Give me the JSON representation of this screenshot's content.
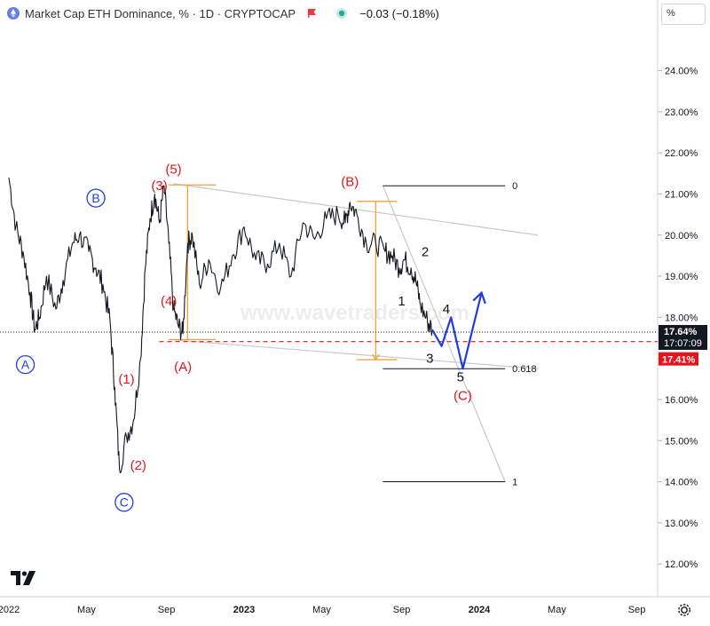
{
  "header": {
    "title": "Market Cap ETH Dominance, % · 1D · CRYPTOCAP",
    "change": "−0.03 (−0.18%)",
    "scale_label": "%"
  },
  "watermark": "www.wavetraders.com",
  "price_tags": {
    "current": "17.64%",
    "countdown": "17:07:09",
    "red": "17.41%"
  },
  "colors": {
    "price": "#131722",
    "red": "#e8121e",
    "blue": "#1e3de0",
    "orange": "#f0a040",
    "gray": "#c8c8c8",
    "accent": "#f23645"
  },
  "chart_data": {
    "type": "line",
    "title": "Market Cap ETH Dominance, % · 1D · CRYPTOCAP",
    "x_ticks": [
      "2022",
      "May",
      "Sep",
      "2023",
      "May",
      "Sep",
      "2024",
      "May",
      "Sep"
    ],
    "y_ticks": [
      "12.00%",
      "13.00%",
      "14.00%",
      "15.00%",
      "16.00%",
      "17.00%",
      "18.00%",
      "19.00%",
      "20.00%",
      "21.00%",
      "22.00%",
      "23.00%",
      "24.00%"
    ],
    "ylim": [
      11.25,
      25.2
    ],
    "series": [
      {
        "values": [
          [
            2022.0,
            21.4
          ],
          [
            2022.03,
            20.2
          ],
          [
            2022.06,
            19.6
          ],
          [
            2022.09,
            18.6
          ],
          [
            2022.11,
            17.7
          ],
          [
            2022.13,
            18.0
          ],
          [
            2022.16,
            19.0
          ],
          [
            2022.2,
            18.2
          ],
          [
            2022.23,
            18.9
          ],
          [
            2022.27,
            19.8
          ],
          [
            2022.3,
            20.0
          ],
          [
            2022.34,
            19.6
          ],
          [
            2022.37,
            19.2
          ],
          [
            2022.4,
            18.8
          ],
          [
            2022.43,
            17.9
          ],
          [
            2022.45,
            16.3
          ],
          [
            2022.47,
            14.3
          ],
          [
            2022.5,
            15.1
          ],
          [
            2022.53,
            15.5
          ],
          [
            2022.56,
            17.0
          ],
          [
            2022.58,
            19.2
          ],
          [
            2022.6,
            20.4
          ],
          [
            2022.62,
            21.0
          ],
          [
            2022.64,
            20.3
          ],
          [
            2022.66,
            21.2
          ],
          [
            2022.68,
            19.8
          ],
          [
            2022.7,
            18.2
          ],
          [
            2022.72,
            17.8
          ],
          [
            2022.74,
            17.6
          ],
          [
            2022.76,
            19.8
          ],
          [
            2022.78,
            20.0
          ],
          [
            2022.81,
            18.8
          ],
          [
            2022.85,
            19.4
          ],
          [
            2022.9,
            18.7
          ],
          [
            2022.95,
            19.5
          ],
          [
            2023.0,
            20.2
          ],
          [
            2023.05,
            19.4
          ],
          [
            2023.1,
            19.3
          ],
          [
            2023.15,
            19.8
          ],
          [
            2023.2,
            19.0
          ],
          [
            2023.25,
            20.3
          ],
          [
            2023.3,
            19.9
          ],
          [
            2023.35,
            20.4
          ],
          [
            2023.4,
            20.5
          ],
          [
            2023.43,
            20.3
          ],
          [
            2023.45,
            20.8
          ],
          [
            2023.48,
            20.5
          ],
          [
            2023.52,
            19.8
          ],
          [
            2023.56,
            19.8
          ],
          [
            2023.6,
            19.6
          ],
          [
            2023.63,
            19.5
          ],
          [
            2023.66,
            19.2
          ],
          [
            2023.68,
            19.4
          ],
          [
            2023.71,
            19.2
          ],
          [
            2023.73,
            18.9
          ],
          [
            2023.75,
            18.3
          ],
          [
            2023.78,
            17.9
          ],
          [
            2023.8,
            17.7
          ]
        ]
      }
    ],
    "levels": [
      {
        "label": "0",
        "value": 21.2
      },
      {
        "label": "0.618",
        "value": 16.75
      },
      {
        "label": "1",
        "value": 14.0
      }
    ],
    "current_value": 17.64,
    "dashed_level": 17.41,
    "projection": [
      [
        2023.8,
        17.7
      ],
      [
        2023.84,
        17.3
      ],
      [
        2023.88,
        18.0
      ],
      [
        2023.93,
        16.75
      ],
      [
        2024.01,
        18.6
      ]
    ],
    "labels": [
      {
        "text": "(5)",
        "style": "red",
        "x": 2022.7,
        "y": 21.6
      },
      {
        "text": "(3)",
        "style": "red",
        "x": 2022.64,
        "y": 21.2
      },
      {
        "text": "(4)",
        "style": "red",
        "x": 2022.68,
        "y": 18.4
      },
      {
        "text": "(1)",
        "style": "red",
        "x": 2022.5,
        "y": 16.5
      },
      {
        "text": "(2)",
        "style": "red",
        "x": 2022.55,
        "y": 14.4
      },
      {
        "text": "(A)",
        "style": "red",
        "x": 2022.74,
        "y": 16.8
      },
      {
        "text": "(B)",
        "style": "red",
        "x": 2023.45,
        "y": 21.3
      },
      {
        "text": "(C)",
        "style": "red",
        "x": 2023.93,
        "y": 16.1
      },
      {
        "text": "A",
        "style": "blue-circle",
        "x": 2022.07,
        "y": 16.85
      },
      {
        "text": "B",
        "style": "blue-circle",
        "x": 2022.37,
        "y": 20.9
      },
      {
        "text": "C",
        "style": "blue-circle",
        "x": 2022.49,
        "y": 13.5
      },
      {
        "text": "1",
        "style": "black",
        "x": 2023.67,
        "y": 18.4
      },
      {
        "text": "2",
        "style": "black",
        "x": 2023.77,
        "y": 19.6
      },
      {
        "text": "3",
        "style": "black",
        "x": 2023.79,
        "y": 17.0
      },
      {
        "text": "4",
        "style": "black",
        "x": 2023.86,
        "y": 18.2
      },
      {
        "text": "5",
        "style": "black",
        "x": 2023.92,
        "y": 16.55
      }
    ]
  }
}
